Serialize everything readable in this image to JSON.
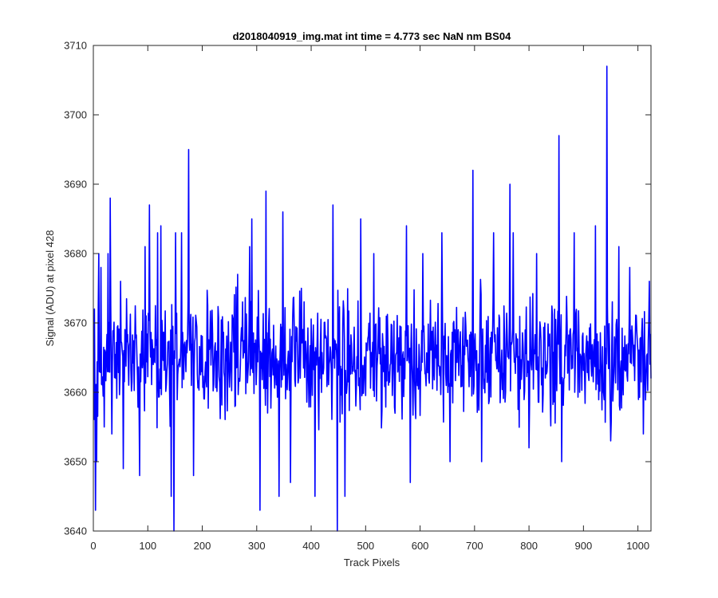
{
  "chart_data": {
    "type": "line",
    "title": "d2018040919_img.mat int time = 4.773 sec  NaN nm BS04",
    "xlabel": "Track Pixels",
    "ylabel": "Signal (ADU) at pixel 428",
    "xlim": [
      0,
      1024
    ],
    "ylim": [
      3640,
      3710
    ],
    "xticks": [
      0,
      100,
      200,
      300,
      400,
      500,
      600,
      700,
      800,
      900,
      1000
    ],
    "yticks": [
      3640,
      3650,
      3660,
      3670,
      3680,
      3690,
      3700,
      3710
    ],
    "grid": false,
    "legend": "none",
    "line_color": "#0000ff",
    "series": [
      {
        "x_start": 1,
        "x_step": 1,
        "noise": {
          "mean": 3665,
          "typical_low": 3654,
          "typical_high": 3676
        },
        "values_at": [
          [
            1,
            3656
          ],
          [
            2,
            3672
          ],
          [
            4,
            3643
          ],
          [
            6,
            3650
          ],
          [
            10,
            3680
          ],
          [
            14,
            3678
          ],
          [
            20,
            3655
          ],
          [
            27,
            3680
          ],
          [
            31,
            3688
          ],
          [
            34,
            3654
          ],
          [
            50,
            3676
          ],
          [
            55,
            3649
          ],
          [
            85,
            3648
          ],
          [
            95,
            3681
          ],
          [
            103,
            3687
          ],
          [
            118,
            3683
          ],
          [
            124,
            3684
          ],
          [
            143,
            3645
          ],
          [
            148,
            3640
          ],
          [
            151,
            3683
          ],
          [
            162,
            3683
          ],
          [
            175,
            3695
          ],
          [
            184,
            3648
          ],
          [
            265,
            3677
          ],
          [
            287,
            3681
          ],
          [
            291,
            3685
          ],
          [
            306,
            3643
          ],
          [
            317,
            3689
          ],
          [
            341,
            3645
          ],
          [
            348,
            3686
          ],
          [
            362,
            3647
          ],
          [
            382,
            3675
          ],
          [
            407,
            3645
          ],
          [
            440,
            3687
          ],
          [
            448,
            3640
          ],
          [
            462,
            3645
          ],
          [
            491,
            3685
          ],
          [
            515,
            3680
          ],
          [
            575,
            3684
          ],
          [
            582,
            3647
          ],
          [
            605,
            3680
          ],
          [
            640,
            3683
          ],
          [
            655,
            3650
          ],
          [
            697,
            3692
          ],
          [
            713,
            3650
          ],
          [
            735,
            3683
          ],
          [
            765,
            3690
          ],
          [
            771,
            3683
          ],
          [
            800,
            3652
          ],
          [
            814,
            3680
          ],
          [
            855,
            3697
          ],
          [
            860,
            3650
          ],
          [
            883,
            3683
          ],
          [
            922,
            3684
          ],
          [
            943,
            3707
          ],
          [
            950,
            3653
          ],
          [
            965,
            3681
          ],
          [
            985,
            3678
          ],
          [
            1010,
            3654
          ],
          [
            1021,
            3676
          ],
          [
            1024,
            3662
          ]
        ]
      }
    ]
  }
}
